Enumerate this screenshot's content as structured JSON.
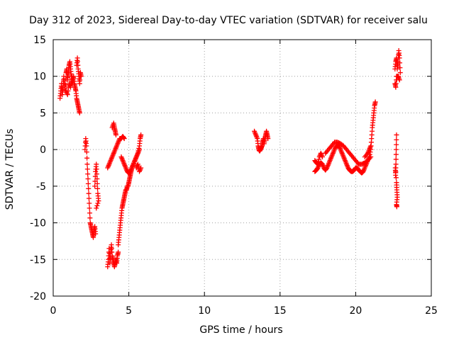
{
  "chart_data": {
    "type": "scatter",
    "title": "Day 312 of 2023, Sidereal Day-to-day VTEC variation (SDTVAR) for receiver salu",
    "xlabel": "GPS time / hours",
    "ylabel": "SDTVAR / TECUs",
    "xlim": [
      0,
      25
    ],
    "ylim": [
      -20,
      15
    ],
    "xticks": [
      0,
      5,
      10,
      15,
      20,
      25
    ],
    "yticks": [
      -20,
      -15,
      -10,
      -5,
      0,
      5,
      10,
      15
    ],
    "xtick_labels": [
      "0",
      "5",
      "10",
      "15",
      "20",
      "25"
    ],
    "ytick_labels": [
      "-20",
      "-15",
      "-10",
      "-5",
      "0",
      "5",
      "10",
      "15"
    ],
    "grid": true,
    "marker": "plus",
    "color": "#ff0000",
    "series": [
      {
        "name": "salu",
        "segments": [
          [
            [
              0.45,
              7.0
            ],
            [
              0.5,
              8.0
            ],
            [
              0.55,
              9.0
            ],
            [
              0.6,
              7.5
            ],
            [
              0.65,
              8.5
            ],
            [
              0.7,
              10.0
            ],
            [
              0.75,
              9.0
            ],
            [
              0.8,
              8.0
            ],
            [
              0.85,
              10.5
            ],
            [
              0.9,
              11.0
            ],
            [
              0.95,
              9.5
            ],
            [
              1.0,
              10.5
            ],
            [
              1.05,
              11.5
            ],
            [
              1.1,
              12.0
            ],
            [
              1.15,
              11.0
            ],
            [
              1.2,
              10.0
            ],
            [
              1.25,
              9.0
            ],
            [
              1.3,
              9.5
            ],
            [
              1.35,
              10.0
            ],
            [
              1.4,
              9.0
            ],
            [
              1.45,
              8.5
            ],
            [
              1.5,
              8.0
            ],
            [
              1.55,
              7.0
            ],
            [
              1.6,
              6.5
            ],
            [
              1.65,
              6.0
            ],
            [
              1.7,
              5.5
            ],
            [
              1.75,
              5.0
            ]
          ],
          [
            [
              1.55,
              11.5
            ],
            [
              1.6,
              12.5
            ],
            [
              1.65,
              11.0
            ],
            [
              1.7,
              10.0
            ],
            [
              1.75,
              9.0
            ],
            [
              1.8,
              10.5
            ],
            [
              1.85,
              10.0
            ]
          ],
          [
            [
              0.85,
              8.0
            ],
            [
              0.95,
              7.5
            ],
            [
              1.05,
              9.0
            ],
            [
              1.15,
              8.5
            ],
            [
              1.25,
              10.0
            ]
          ],
          [
            [
              2.1,
              0.0
            ],
            [
              2.15,
              1.5
            ],
            [
              2.2,
              0.5
            ],
            [
              2.25,
              -2.0
            ],
            [
              2.3,
              -4.0
            ],
            [
              2.35,
              -6.0
            ],
            [
              2.4,
              -8.0
            ],
            [
              2.45,
              -10.0
            ],
            [
              2.5,
              -10.5
            ],
            [
              2.55,
              -11.0
            ],
            [
              2.6,
              -11.5
            ],
            [
              2.65,
              -12.0
            ],
            [
              2.7,
              -11.0
            ],
            [
              2.75,
              -10.5
            ],
            [
              2.8,
              -11.5
            ]
          ],
          [
            [
              2.75,
              -5.0
            ],
            [
              2.8,
              -3.0
            ],
            [
              2.85,
              -2.0
            ],
            [
              2.9,
              -4.0
            ],
            [
              2.95,
              -6.0
            ],
            [
              3.0,
              -7.0
            ],
            [
              2.85,
              -8.0
            ]
          ],
          [
            [
              3.6,
              -16.0
            ],
            [
              3.65,
              -15.0
            ],
            [
              3.7,
              -13.5
            ],
            [
              3.75,
              -15.5
            ],
            [
              3.8,
              -14.0
            ],
            [
              3.85,
              -13.0
            ],
            [
              3.9,
              -14.5
            ],
            [
              3.95,
              -15.0
            ],
            [
              4.0,
              -15.5
            ],
            [
              4.05,
              -16.0
            ],
            [
              4.1,
              -15.5
            ],
            [
              4.15,
              -15.0
            ],
            [
              4.2,
              -15.5
            ],
            [
              4.25,
              -14.5
            ],
            [
              4.3,
              -14.0
            ]
          ],
          [
            [
              4.3,
              -13.0
            ],
            [
              4.35,
              -12.0
            ],
            [
              4.4,
              -11.0
            ],
            [
              4.45,
              -10.0
            ],
            [
              4.5,
              -9.0
            ],
            [
              4.55,
              -8.0
            ],
            [
              4.6,
              -7.5
            ],
            [
              4.65,
              -7.0
            ],
            [
              4.7,
              -6.5
            ],
            [
              4.75,
              -6.0
            ],
            [
              4.8,
              -5.5
            ],
            [
              4.85,
              -5.5
            ],
            [
              4.9,
              -5.0
            ],
            [
              4.95,
              -5.0
            ],
            [
              5.0,
              -4.5
            ],
            [
              5.05,
              -4.0
            ],
            [
              5.1,
              -3.5
            ],
            [
              5.15,
              -3.0
            ],
            [
              5.2,
              -2.5
            ],
            [
              5.3,
              -2.0
            ],
            [
              5.4,
              -1.5
            ],
            [
              5.5,
              -1.0
            ],
            [
              5.6,
              -0.5
            ],
            [
              5.7,
              0.5
            ],
            [
              5.75,
              1.5
            ],
            [
              5.8,
              2.0
            ]
          ],
          [
            [
              3.6,
              -2.5
            ],
            [
              3.7,
              -2.0
            ],
            [
              3.8,
              -1.5
            ],
            [
              3.9,
              -1.0
            ],
            [
              4.0,
              -0.5
            ],
            [
              4.1,
              0.0
            ],
            [
              4.2,
              0.5
            ],
            [
              4.3,
              1.0
            ],
            [
              4.4,
              1.5
            ],
            [
              4.5,
              1.5
            ],
            [
              4.6,
              1.8
            ],
            [
              4.7,
              1.5
            ]
          ],
          [
            [
              4.5,
              -1.0
            ],
            [
              4.6,
              -1.5
            ],
            [
              4.7,
              -2.0
            ],
            [
              4.8,
              -2.5
            ],
            [
              4.9,
              -3.0
            ],
            [
              5.0,
              -3.2
            ],
            [
              5.1,
              -3.0
            ],
            [
              5.2,
              -2.5
            ],
            [
              5.3,
              -2.0
            ],
            [
              5.4,
              -1.5
            ],
            [
              5.5,
              -1.0
            ],
            [
              5.6,
              -0.5
            ],
            [
              5.7,
              0.0
            ]
          ],
          [
            [
              3.9,
              3.0
            ],
            [
              4.0,
              3.6
            ],
            [
              4.05,
              3.0
            ],
            [
              4.1,
              2.5
            ],
            [
              4.15,
              2.0
            ]
          ],
          [
            [
              5.5,
              -2.5
            ],
            [
              5.6,
              -2.0
            ],
            [
              5.7,
              -3.0
            ],
            [
              5.8,
              -2.5
            ]
          ],
          [
            [
              13.3,
              2.5
            ],
            [
              13.4,
              2.0
            ],
            [
              13.5,
              1.5
            ],
            [
              13.55,
              0.5
            ],
            [
              13.6,
              0.0
            ],
            [
              13.65,
              -0.2
            ],
            [
              13.7,
              0.0
            ],
            [
              13.75,
              0.2
            ],
            [
              13.8,
              0.5
            ],
            [
              13.85,
              1.0
            ],
            [
              13.9,
              1.5
            ],
            [
              13.95,
              0.8
            ],
            [
              14.0,
              1.5
            ],
            [
              14.05,
              2.0
            ],
            [
              14.1,
              2.5
            ],
            [
              14.15,
              2.0
            ],
            [
              14.2,
              1.5
            ]
          ],
          [
            [
              17.3,
              -3.0
            ],
            [
              17.4,
              -2.8
            ],
            [
              17.5,
              -2.5
            ],
            [
              17.6,
              -2.0
            ],
            [
              17.7,
              -1.8
            ],
            [
              17.8,
              -2.0
            ],
            [
              17.9,
              -2.5
            ],
            [
              18.0,
              -2.8
            ],
            [
              18.1,
              -2.5
            ],
            [
              18.2,
              -2.0
            ],
            [
              18.3,
              -1.5
            ],
            [
              18.4,
              -1.0
            ],
            [
              18.5,
              -0.5
            ],
            [
              18.6,
              0.0
            ],
            [
              18.7,
              0.5
            ],
            [
              18.8,
              0.5
            ],
            [
              18.9,
              0.5
            ],
            [
              19.0,
              0.0
            ],
            [
              19.1,
              -0.5
            ],
            [
              19.2,
              -1.0
            ],
            [
              19.3,
              -1.5
            ],
            [
              19.4,
              -2.0
            ],
            [
              19.5,
              -2.5
            ],
            [
              19.6,
              -2.8
            ],
            [
              19.7,
              -3.0
            ],
            [
              19.8,
              -3.0
            ],
            [
              19.9,
              -2.8
            ],
            [
              20.0,
              -2.5
            ],
            [
              20.1,
              -2.5
            ],
            [
              20.2,
              -2.8
            ],
            [
              20.3,
              -3.0
            ],
            [
              20.4,
              -3.2
            ],
            [
              20.5,
              -3.0
            ],
            [
              20.6,
              -2.5
            ],
            [
              20.7,
              -2.0
            ],
            [
              20.8,
              -1.5
            ],
            [
              20.9,
              -1.0
            ],
            [
              21.0,
              0.0
            ],
            [
              21.05,
              1.5
            ],
            [
              21.1,
              3.0
            ],
            [
              21.15,
              4.0
            ],
            [
              21.2,
              5.0
            ],
            [
              21.25,
              6.0
            ],
            [
              21.3,
              6.5
            ]
          ],
          [
            [
              17.3,
              -1.5
            ],
            [
              17.4,
              -1.8
            ],
            [
              17.5,
              -2.0
            ],
            [
              17.6,
              -1.0
            ],
            [
              17.7,
              -0.5
            ],
            [
              17.8,
              -1.0
            ]
          ],
          [
            [
              18.0,
              -0.5
            ],
            [
              18.2,
              0.0
            ],
            [
              18.4,
              0.5
            ],
            [
              18.6,
              1.0
            ],
            [
              18.8,
              1.0
            ],
            [
              19.0,
              0.8
            ],
            [
              19.2,
              0.5
            ],
            [
              19.4,
              0.0
            ],
            [
              19.6,
              -0.5
            ],
            [
              19.8,
              -1.0
            ],
            [
              20.0,
              -1.5
            ],
            [
              20.2,
              -2.0
            ],
            [
              20.4,
              -2.0
            ],
            [
              20.6,
              -1.8
            ],
            [
              20.8,
              -1.5
            ],
            [
              21.0,
              -1.0
            ]
          ],
          [
            [
              20.6,
              -1.0
            ],
            [
              20.8,
              -0.5
            ],
            [
              20.9,
              0.0
            ],
            [
              21.0,
              0.5
            ]
          ],
          [
            [
              22.6,
              11.0
            ],
            [
              22.65,
              12.0
            ],
            [
              22.7,
              12.5
            ],
            [
              22.75,
              11.0
            ],
            [
              22.8,
              12.0
            ],
            [
              22.85,
              13.5
            ],
            [
              22.9,
              12.5
            ],
            [
              22.95,
              10.5
            ],
            [
              22.6,
              9.0
            ],
            [
              22.65,
              8.5
            ],
            [
              22.7,
              10.0
            ],
            [
              22.8,
              10.0
            ],
            [
              22.9,
              9.5
            ]
          ],
          [
            [
              22.7,
              2.0
            ],
            [
              22.68,
              0.0
            ],
            [
              22.66,
              -2.0
            ],
            [
              22.64,
              -3.5
            ],
            [
              22.62,
              -2.5
            ],
            [
              22.7,
              -4.5
            ],
            [
              22.72,
              -5.5
            ],
            [
              22.75,
              -6.5
            ],
            [
              22.7,
              -7.5
            ],
            [
              22.72,
              -7.8
            ]
          ]
        ]
      }
    ]
  }
}
